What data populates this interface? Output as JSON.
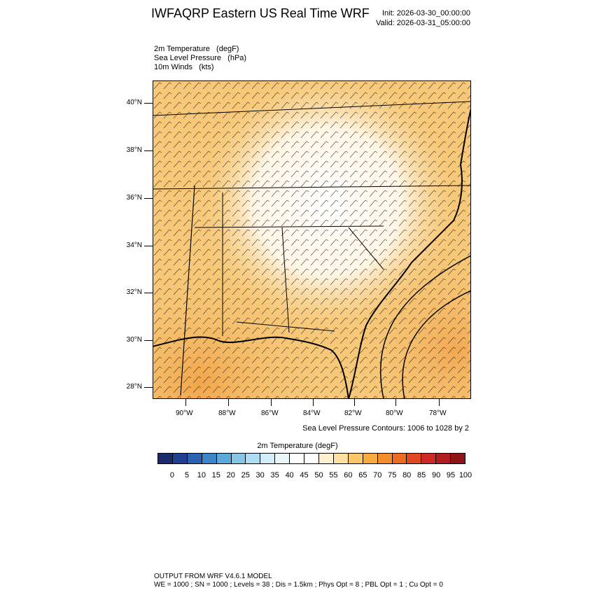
{
  "header": {
    "title": "IWFAQRP Eastern US Real Time WRF",
    "init": "Init: 2026-03-30_00:00:00",
    "valid": "Valid: 2026-03-31_05:00:00"
  },
  "fields": {
    "line1": "2m Temperature   (degF)",
    "line2": "Sea Level Pressure   (hPa)",
    "line3": "10m Winds   (kts)"
  },
  "map": {
    "lat_labels": [
      "40°N",
      "38°N",
      "36°N",
      "34°N",
      "32°N",
      "30°N",
      "28°N"
    ],
    "lon_labels": [
      "90°W",
      "88°W",
      "86°W",
      "84°W",
      "82°W",
      "80°W",
      "78°W"
    ],
    "contour_info": "Sea Level Pressure Contours: 1006 to 1028 by 2",
    "background_color": "#f7c877",
    "cool_region_color": "#fff4e0"
  },
  "colorbar": {
    "title": "2m Temperature  (degF)",
    "labels": [
      "0",
      "5",
      "10",
      "15",
      "20",
      "25",
      "30",
      "35",
      "40",
      "45",
      "50",
      "55",
      "60",
      "65",
      "70",
      "75",
      "80",
      "85",
      "90",
      "95",
      "100"
    ],
    "colors": [
      "#1b2a6b",
      "#1f3f8f",
      "#2a62b1",
      "#3a86c8",
      "#5aaad9",
      "#86c6e8",
      "#aedcf2",
      "#d2ecf8",
      "#eaf6fb",
      "#ffffff",
      "#ffffff",
      "#fff1d0",
      "#ffe0a0",
      "#fcc768",
      "#f8ac3e",
      "#f48e2a",
      "#ee6c22",
      "#e04a20",
      "#cc2a22",
      "#b01c20",
      "#8f1418"
    ]
  },
  "footer": {
    "line1": "OUTPUT FROM WRF V4.6.1 MODEL",
    "line2": "WE = 1000 ; SN = 1000 ; Levels = 38 ; Dis = 1.5km ; Phys Opt = 8 ; PBL Opt = 1 ; Cu Opt = 0"
  }
}
